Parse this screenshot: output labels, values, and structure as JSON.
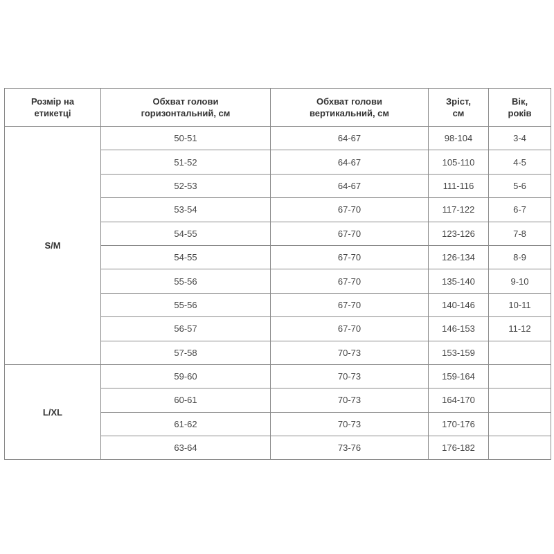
{
  "headers": [
    "Розмір на етикетці",
    "Обхват голови горизонтальний, см",
    "Обхват голови вертикальний, см",
    "Зріст, см",
    "Вік, років"
  ],
  "header_lines": [
    [
      "Розмір на",
      "етикетці"
    ],
    [
      "Обхват голови",
      "горизонтальний, см"
    ],
    [
      "Обхват голови",
      "вертикальний, см"
    ],
    [
      "Зріст,",
      "см"
    ],
    [
      "Вік,",
      "років"
    ]
  ],
  "groups": [
    {
      "size": "S/M",
      "rows": [
        [
          "50-51",
          "64-67",
          "98-104",
          "3-4"
        ],
        [
          "51-52",
          "64-67",
          "105-110",
          "4-5"
        ],
        [
          "52-53",
          "64-67",
          "111-116",
          "5-6"
        ],
        [
          "53-54",
          "67-70",
          "117-122",
          "6-7"
        ],
        [
          "54-55",
          "67-70",
          "123-126",
          "7-8"
        ],
        [
          "54-55",
          "67-70",
          "126-134",
          "8-9"
        ],
        [
          "55-56",
          "67-70",
          "135-140",
          "9-10"
        ],
        [
          "55-56",
          "67-70",
          "140-146",
          "10-11"
        ],
        [
          "56-57",
          "67-70",
          "146-153",
          "11-12"
        ],
        [
          "57-58",
          "70-73",
          "153-159",
          ""
        ]
      ]
    },
    {
      "size": "L/XL",
      "rows": [
        [
          "59-60",
          "70-73",
          "159-164",
          ""
        ],
        [
          "60-61",
          "70-73",
          "164-170",
          ""
        ],
        [
          "61-62",
          "70-73",
          "170-176",
          ""
        ],
        [
          "63-64",
          "73-76",
          "176-182",
          ""
        ]
      ]
    }
  ]
}
